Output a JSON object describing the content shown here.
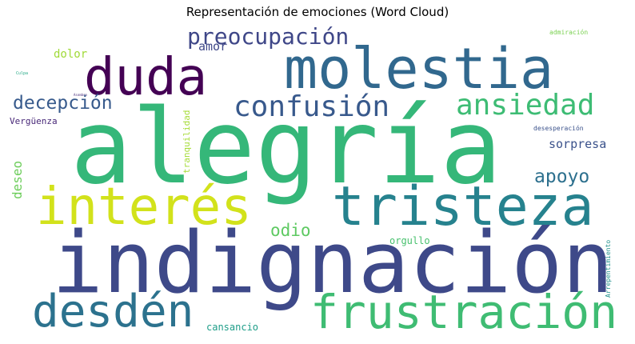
{
  "title": "Representación de emociones (Word Cloud)",
  "words": [
    {
      "text": "alegría",
      "color": "#35b779"
    },
    {
      "text": "indignación",
      "color": "#3e4989"
    },
    {
      "text": "molestia",
      "color": "#31688e"
    },
    {
      "text": "tristeza",
      "color": "#26828e"
    },
    {
      "text": "interés",
      "color": "#d2e21b"
    },
    {
      "text": "frustración",
      "color": "#3fbc73"
    },
    {
      "text": "desdén",
      "color": "#2c728e"
    },
    {
      "text": "duda",
      "color": "#440154"
    },
    {
      "text": "confusión",
      "color": "#38598c"
    },
    {
      "text": "ansiedad",
      "color": "#3dbc74"
    },
    {
      "text": "preocupación",
      "color": "#3f4788"
    },
    {
      "text": "decepción",
      "color": "#375a8c"
    },
    {
      "text": "apoyo",
      "color": "#2d708e"
    },
    {
      "text": "odio",
      "color": "#5ec962"
    },
    {
      "text": "sorpresa",
      "color": "#3b528b"
    },
    {
      "text": "amor",
      "color": "#3f4889"
    },
    {
      "text": "dolor",
      "color": "#a0da39"
    },
    {
      "text": "deseo",
      "color": "#6ccd5a"
    },
    {
      "text": "Vergüenza",
      "color": "#482878"
    },
    {
      "text": "tranquilidad",
      "color": "#a5db36"
    },
    {
      "text": "orgullo",
      "color": "#48c16e"
    },
    {
      "text": "cansancio",
      "color": "#1f9e89"
    },
    {
      "text": "admiración",
      "color": "#7ad151"
    },
    {
      "text": "desesperación",
      "color": "#3b528b"
    },
    {
      "text": "Arrepentimiento",
      "color": "#21918c"
    },
    {
      "text": "Culpa",
      "color": "#22a884"
    },
    {
      "text": "Asombro",
      "color": "#472c7a"
    }
  ]
}
